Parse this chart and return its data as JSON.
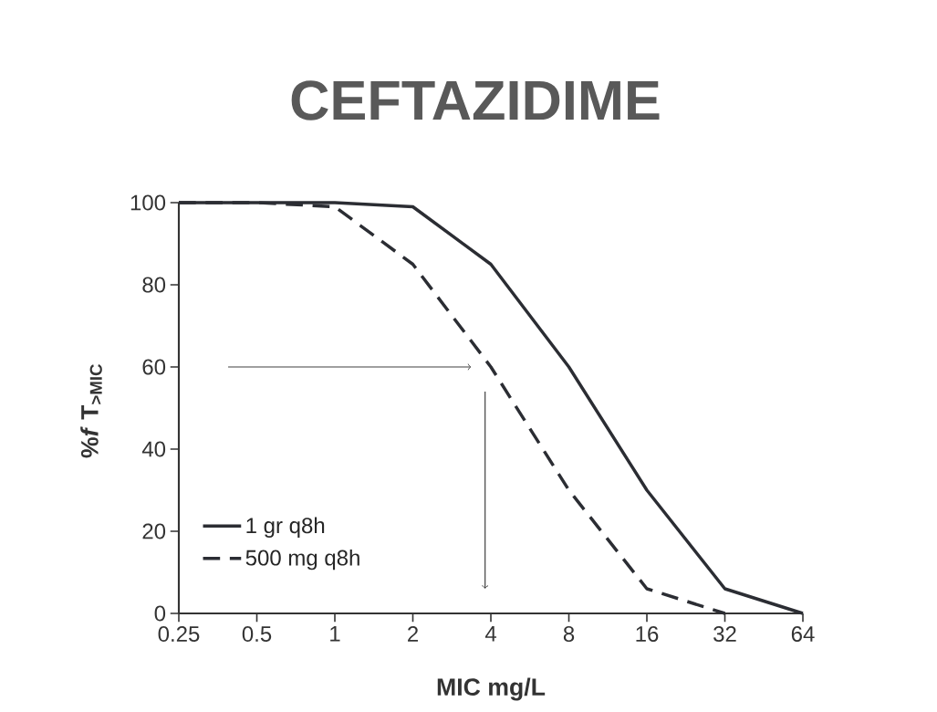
{
  "chart_data": {
    "type": "line",
    "title": "CEFTAZIDIME",
    "xlabel": "MIC mg/L",
    "ylabel": "%*f* T$_{>MIC}$",
    "x": [
      0.25,
      0.5,
      1,
      2,
      4,
      8,
      16,
      32,
      64
    ],
    "series": [
      {
        "name": "1 gr q8h",
        "color": "#2b2d33",
        "line_style": "solid",
        "values": [
          100,
          100,
          100,
          99,
          85,
          60,
          30,
          6,
          0
        ]
      },
      {
        "name": "500 mg q8h",
        "color": "#2b2d33",
        "line_style": "dashed",
        "values": [
          100,
          100,
          99,
          85,
          60,
          30,
          6,
          0,
          null
        ]
      }
    ],
    "log": "x",
    "xlim": [
      0.25,
      64
    ],
    "xticks": [
      0.25,
      0.5,
      1,
      2,
      4,
      8,
      16,
      32,
      64
    ],
    "ylim": [
      0,
      100
    ],
    "yticks": [
      0,
      20,
      40,
      60,
      80,
      100
    ],
    "legend": "bottom left"
  }
}
